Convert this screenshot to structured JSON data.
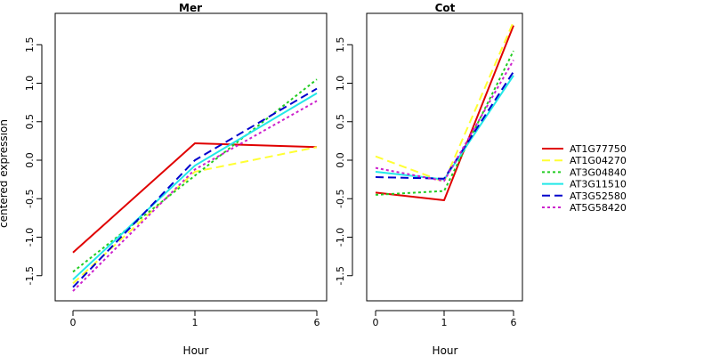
{
  "ylabel": "centered expression",
  "chart_data": [
    {
      "type": "line",
      "title": "Mer",
      "xlabel": "Hour",
      "ylabel": "centered expression",
      "x": [
        "0",
        "1",
        "6"
      ],
      "ylim": [
        -1.8,
        1.9
      ],
      "yticks": [
        -1.5,
        -1.0,
        -0.5,
        0.0,
        0.5,
        1.0,
        1.5
      ],
      "series": [
        {
          "name": "AT1G77750",
          "values": [
            -1.2,
            0.22,
            0.17
          ]
        },
        {
          "name": "AT1G04270",
          "values": [
            -1.6,
            -0.15,
            0.17
          ]
        },
        {
          "name": "AT3G04840",
          "values": [
            -1.45,
            -0.2,
            1.05
          ]
        },
        {
          "name": "AT3G11510",
          "values": [
            -1.55,
            -0.07,
            0.87
          ]
        },
        {
          "name": "AT3G52580",
          "values": [
            -1.65,
            0.0,
            0.93
          ]
        },
        {
          "name": "AT5G58420",
          "values": [
            -1.7,
            -0.12,
            0.77
          ]
        }
      ]
    },
    {
      "type": "line",
      "title": "Cot",
      "xlabel": "Hour",
      "x": [
        "0",
        "1",
        "6"
      ],
      "ylim": [
        -1.8,
        1.9
      ],
      "yticks": [
        -1.5,
        -1.0,
        -0.5,
        0.0,
        0.5,
        1.0,
        1.5
      ],
      "series": [
        {
          "name": "AT1G77750",
          "values": [
            -0.42,
            -0.52,
            1.75
          ]
        },
        {
          "name": "AT1G04270",
          "values": [
            0.05,
            -0.28,
            1.8
          ]
        },
        {
          "name": "AT3G04840",
          "values": [
            -0.45,
            -0.4,
            1.42
          ]
        },
        {
          "name": "AT3G11510",
          "values": [
            -0.15,
            -0.25,
            1.1
          ]
        },
        {
          "name": "AT3G52580",
          "values": [
            -0.22,
            -0.24,
            1.15
          ]
        },
        {
          "name": "AT5G58420",
          "values": [
            -0.1,
            -0.27,
            1.3
          ]
        }
      ]
    }
  ],
  "legend": {
    "placement": "right",
    "entries": [
      {
        "name": "AT1G77750",
        "color": "#e00000",
        "dash": "solid"
      },
      {
        "name": "AT1G04270",
        "color": "#ffff33",
        "dash": "long-dash"
      },
      {
        "name": "AT3G04840",
        "color": "#22cc22",
        "dash": "dotted"
      },
      {
        "name": "AT3G11510",
        "color": "#22e8e8",
        "dash": "solid"
      },
      {
        "name": "AT3G52580",
        "color": "#0000cc",
        "dash": "long-dash"
      },
      {
        "name": "AT5G58420",
        "color": "#cc22cc",
        "dash": "dotted"
      }
    ]
  }
}
